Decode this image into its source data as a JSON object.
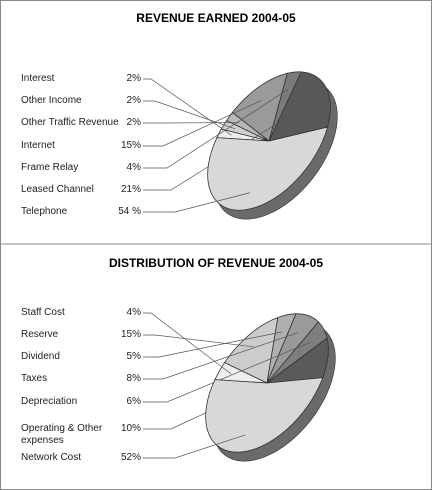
{
  "chart_data": [
    {
      "type": "pie",
      "title": "REVENUE EARNED 2004-05",
      "categories": [
        "Interest",
        "Other Income",
        "Other Traffic Revenue",
        "Internet",
        "Frame Relay",
        "Leased Channel",
        "Telephone"
      ],
      "values": [
        2,
        2,
        2,
        15,
        4,
        21,
        54
      ],
      "value_labels": [
        "2%",
        "2%",
        "2%",
        "15%",
        "4%",
        "21%",
        "54 %"
      ],
      "colors": [
        "#eeeeee",
        "#d0d0d0",
        "#b8b8b8",
        "#9a9a9a",
        "#7a7a7a",
        "#585858",
        "#d8d8d8"
      ]
    },
    {
      "type": "pie",
      "title": "DISTRIBUTION OF REVENUE 2004-05",
      "categories": [
        "Staff Cost",
        "Reserve",
        "Dividend",
        "Taxes",
        "Depreciation",
        "Operating & Other expenses",
        "Network Cost"
      ],
      "values": [
        4,
        15,
        5,
        8,
        6,
        10,
        52
      ],
      "value_labels": [
        "4%",
        "15%",
        "5%",
        "8%",
        "6%",
        "10%",
        "52%"
      ],
      "colors": [
        "#eeeeee",
        "#cccccc",
        "#b0b0b0",
        "#9a9a9a",
        "#7e7e7e",
        "#5a5a5a",
        "#d8d8d8"
      ]
    }
  ]
}
